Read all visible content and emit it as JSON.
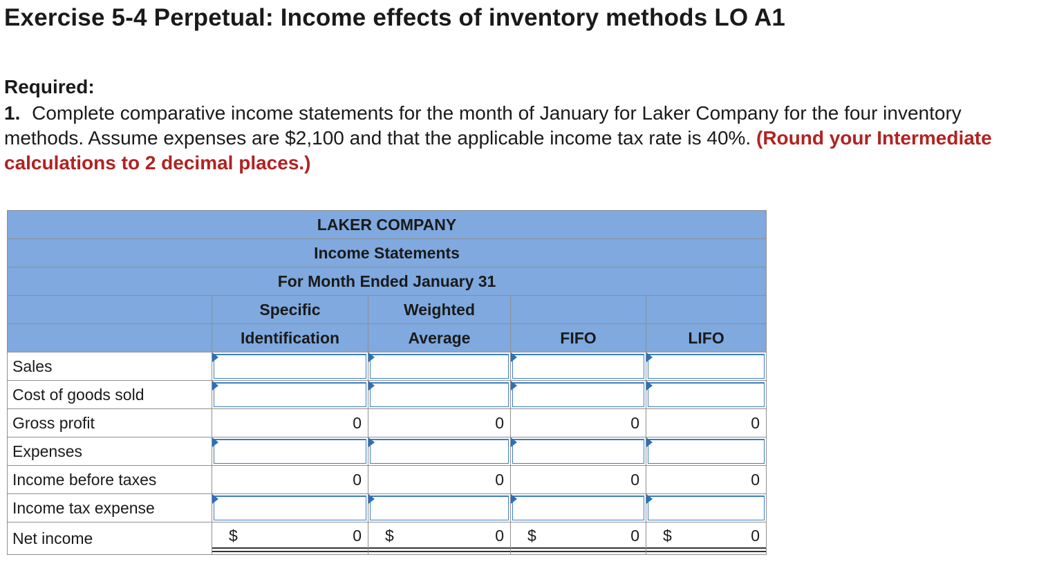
{
  "title": "Exercise 5-4 Perpetual: Income effects of inventory methods LO A1",
  "required_label": "Required:",
  "instruction": {
    "number": "1.",
    "text": "Complete comparative income statements for the month of January for Laker Company for the four inventory methods. Assume expenses are $2,100 and that the applicable income tax rate is 40%.",
    "note": "(Round your Intermediate calculations to 2 decimal places.)"
  },
  "statement": {
    "company": "LAKER COMPANY",
    "name": "Income Statements",
    "period": "For Month Ended January 31",
    "columns": [
      {
        "line1": "Specific",
        "line2": "Identification"
      },
      {
        "line1": "Weighted",
        "line2": "Average"
      },
      {
        "line1": "",
        "line2": "FIFO"
      },
      {
        "line1": "",
        "line2": "LIFO"
      }
    ],
    "rows": {
      "sales": "Sales",
      "cogs": "Cost of goods sold",
      "gross_profit": "Gross profit",
      "expenses": "Expenses",
      "income_before_taxes": "Income before taxes",
      "income_tax_expense": "Income tax expense",
      "net_income": "Net income"
    },
    "gross_profit_values": [
      "0",
      "0",
      "0",
      "0"
    ],
    "income_before_taxes_values": [
      "0",
      "0",
      "0",
      "0"
    ],
    "net_income_values": [
      "0",
      "0",
      "0",
      "0"
    ],
    "currency_symbol": "$"
  }
}
